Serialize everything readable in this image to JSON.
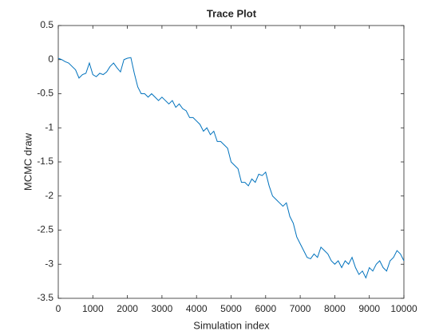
{
  "chart_data": {
    "type": "line",
    "title": "Trace Plot",
    "x_label": "Simulation index",
    "y_label": "MCMC draw",
    "x": [
      0,
      100,
      200,
      300,
      400,
      500,
      600,
      700,
      800,
      900,
      1000,
      1100,
      1200,
      1300,
      1400,
      1500,
      1600,
      1700,
      1800,
      1900,
      2000,
      2100,
      2200,
      2300,
      2400,
      2500,
      2600,
      2700,
      2800,
      2900,
      3000,
      3100,
      3200,
      3300,
      3400,
      3500,
      3600,
      3700,
      3800,
      3900,
      4000,
      4100,
      4200,
      4300,
      4400,
      4500,
      4600,
      4700,
      4800,
      4900,
      5000,
      5100,
      5200,
      5300,
      5400,
      5500,
      5600,
      5700,
      5800,
      5900,
      6000,
      6100,
      6200,
      6300,
      6400,
      6500,
      6600,
      6700,
      6800,
      6900,
      7000,
      7100,
      7200,
      7300,
      7400,
      7500,
      7600,
      7700,
      7800,
      7900,
      8000,
      8100,
      8200,
      8300,
      8400,
      8500,
      8600,
      8700,
      8800,
      8900,
      9000,
      9100,
      9200,
      9300,
      9400,
      9500,
      9600,
      9700,
      9800,
      9900,
      10000
    ],
    "series": [
      {
        "color": "#0072bd",
        "values": [
          0.02,
          0.0,
          -0.03,
          -0.05,
          -0.1,
          -0.15,
          -0.27,
          -0.22,
          -0.2,
          -0.05,
          -0.22,
          -0.25,
          -0.2,
          -0.22,
          -0.18,
          -0.1,
          -0.05,
          -0.12,
          -0.18,
          0.0,
          0.02,
          0.03,
          -0.2,
          -0.4,
          -0.5,
          -0.5,
          -0.55,
          -0.5,
          -0.55,
          -0.6,
          -0.55,
          -0.6,
          -0.65,
          -0.6,
          -0.7,
          -0.65,
          -0.72,
          -0.75,
          -0.85,
          -0.85,
          -0.9,
          -0.95,
          -1.05,
          -1.0,
          -1.1,
          -1.05,
          -1.2,
          -1.2,
          -1.25,
          -1.3,
          -1.5,
          -1.55,
          -1.6,
          -1.8,
          -1.8,
          -1.85,
          -1.75,
          -1.8,
          -1.68,
          -1.7,
          -1.65,
          -1.85,
          -2.0,
          -2.05,
          -2.1,
          -2.15,
          -2.1,
          -2.3,
          -2.4,
          -2.6,
          -2.7,
          -2.8,
          -2.9,
          -2.92,
          -2.85,
          -2.9,
          -2.75,
          -2.8,
          -2.85,
          -2.95,
          -3.0,
          -2.95,
          -3.05,
          -2.95,
          -3.0,
          -2.9,
          -3.05,
          -3.15,
          -3.1,
          -3.2,
          -3.05,
          -3.1,
          -3.0,
          -2.95,
          -3.05,
          -3.1,
          -2.95,
          -2.9,
          -2.8,
          -2.85,
          -2.95
        ]
      }
    ],
    "xlim": [
      0,
      10000
    ],
    "xticks": [
      0,
      1000,
      2000,
      3000,
      4000,
      5000,
      6000,
      7000,
      8000,
      9000,
      10000
    ],
    "ylim": [
      -3.5,
      0.5
    ],
    "yticks": [
      0.5,
      0,
      -0.5,
      -1,
      -1.5,
      -2,
      -2.5,
      -3,
      -3.5
    ],
    "grid": false
  }
}
